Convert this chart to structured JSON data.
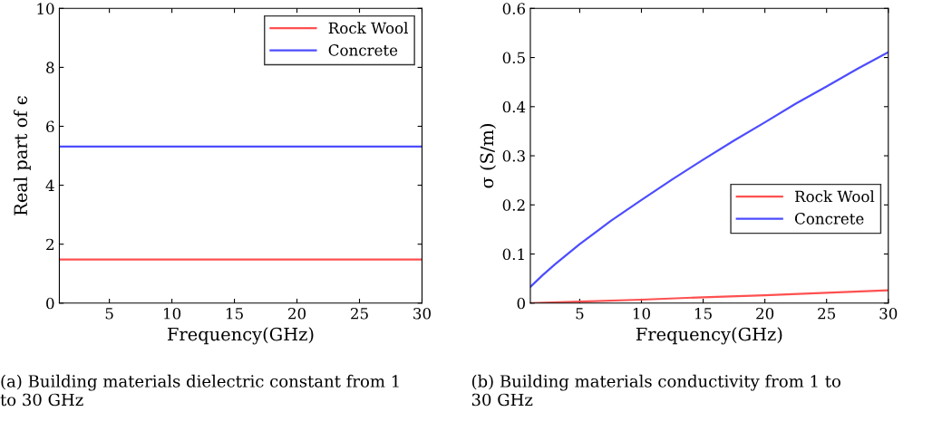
{
  "chart_data": [
    {
      "type": "line",
      "xlabel": "Frequency(GHz)",
      "ylabel": "Real part of ϵ",
      "x": [
        1,
        30
      ],
      "xlim": [
        1,
        30
      ],
      "xticks": [
        5,
        10,
        15,
        20,
        25,
        30
      ],
      "ylim": [
        0,
        10
      ],
      "yticks": [
        0,
        2,
        4,
        6,
        8,
        10
      ],
      "grid": false,
      "legend": "top right",
      "series": [
        {
          "name": "Rock Wool",
          "color": "#ff5050",
          "values": [
            1.48,
            1.48
          ]
        },
        {
          "name": "Concrete",
          "color": "#4d4dff",
          "values": [
            5.31,
            5.31
          ]
        }
      ],
      "annotations": [
        "(a) Building materials dielectric constant from 1\nto 30 GHz"
      ]
    },
    {
      "type": "line",
      "xlabel": "Frequency(GHz)",
      "ylabel": "σ (S/m)",
      "xlim": [
        1,
        30
      ],
      "xticks": [
        5,
        10,
        15,
        20,
        25,
        30
      ],
      "ylim": [
        0,
        0.6
      ],
      "yticks": [
        0,
        0.1,
        0.2,
        0.3,
        0.4,
        0.5,
        0.6
      ],
      "grid": false,
      "legend": "right",
      "series": [
        {
          "name": "Rock Wool",
          "color": "#ff5050",
          "x": [
            1,
            5,
            10,
            15,
            20,
            25,
            30
          ],
          "values": [
            0,
            0.003,
            0.007,
            0.012,
            0.016,
            0.021,
            0.026
          ]
        },
        {
          "name": "Concrete",
          "color": "#4d4dff",
          "x": [
            1,
            2,
            3,
            5,
            7.5,
            10,
            12.5,
            15,
            17.5,
            20,
            22.5,
            25,
            27.5,
            30
          ],
          "values": [
            0.033,
            0.057,
            0.079,
            0.12,
            0.167,
            0.21,
            0.252,
            0.292,
            0.331,
            0.368,
            0.406,
            0.441,
            0.477,
            0.511
          ]
        }
      ],
      "annotations": [
        "(b) Building materials conductivity from 1 to\n30 GHz"
      ]
    }
  ]
}
